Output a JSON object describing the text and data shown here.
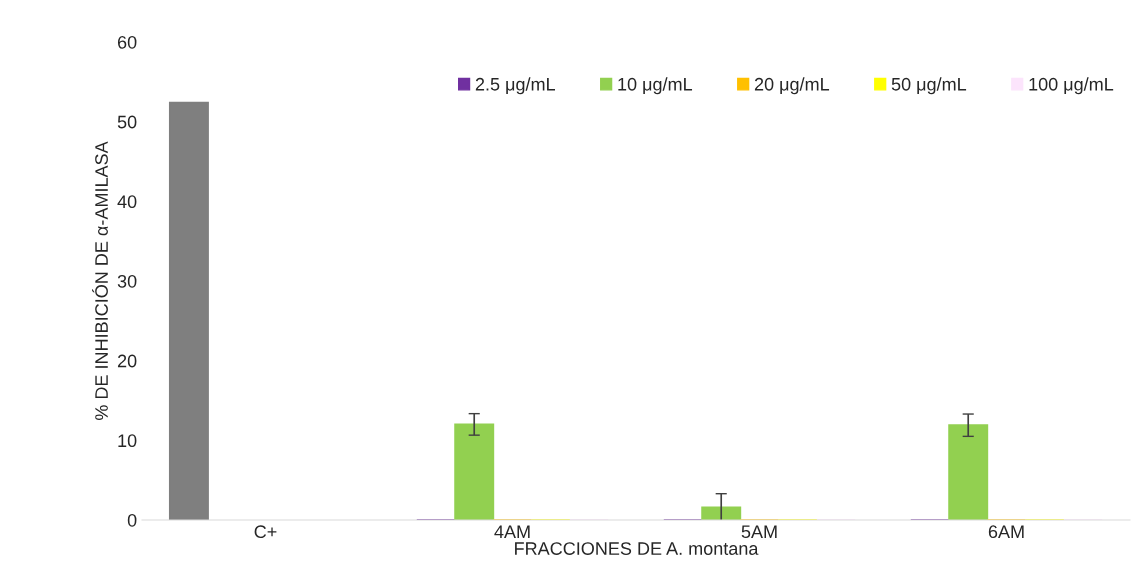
{
  "chart_data": {
    "type": "bar",
    "xlabel": "FRACCIONES DE A. montana",
    "ylabel": "% DE INHIBICIÓN DE α-AMILASA",
    "categories": [
      "C+",
      "4AM",
      "5AM",
      "6AM"
    ],
    "ylim": [
      0,
      60
    ],
    "yticks": [
      0,
      10,
      20,
      30,
      40,
      50,
      60
    ],
    "grid": false,
    "legend": "top right",
    "series": [
      {
        "name": "2.5 μg/mL",
        "color": "#7030a0",
        "colors": [
          "#7f7f7f",
          "#7030a0",
          "#7030a0",
          "#7030a0"
        ],
        "values": [
          52.4,
          0,
          0,
          0
        ]
      },
      {
        "name": "10 μg/mL",
        "color": "#92d050",
        "values": [
          null,
          12.0,
          1.6,
          11.9
        ],
        "errors": [
          null,
          1.35,
          1.7,
          1.4
        ]
      },
      {
        "name": "20 μg/mL",
        "color": "#ffc000",
        "values": [
          null,
          0,
          0,
          0
        ]
      },
      {
        "name": "50 μg/mL",
        "color": "#ffff00",
        "values": [
          null,
          0,
          0,
          0
        ]
      },
      {
        "name": "100 μg/mL",
        "color": "#fce4fc",
        "values": [
          null,
          0,
          0,
          0
        ]
      }
    ]
  }
}
